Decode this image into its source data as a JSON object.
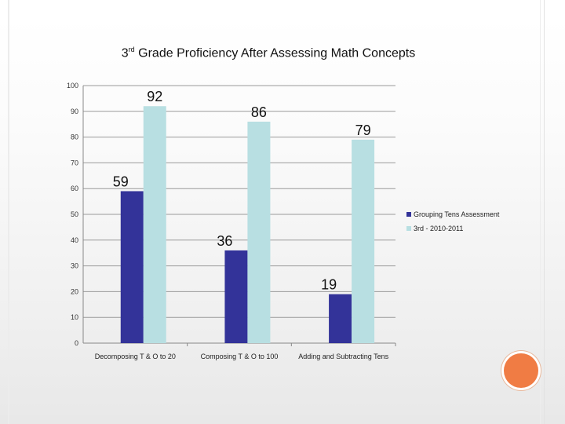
{
  "chart_data": {
    "type": "bar",
    "title": {
      "prefix": "3",
      "sup": "rd",
      "rest": " Grade Proficiency After Assessing Math Concepts"
    },
    "categories": [
      "Decomposing T & O to 20",
      "Composing T & O to 100",
      "Adding and Subtracting Tens"
    ],
    "series": [
      {
        "name": "Grouping Tens Assessment",
        "values": [
          59,
          36,
          19
        ],
        "color": "#333399"
      },
      {
        "name": "3rd - 2010-2011",
        "values": [
          92,
          86,
          79
        ],
        "color": "#b8dfe2"
      }
    ],
    "ylim": [
      0,
      100
    ],
    "yticks": [
      0,
      10,
      20,
      30,
      40,
      50,
      60,
      70,
      80,
      90,
      100
    ],
    "grid": true,
    "legend": "right",
    "xlabel": "",
    "ylabel": ""
  },
  "decor": {
    "accent_color": "#f07c44"
  }
}
